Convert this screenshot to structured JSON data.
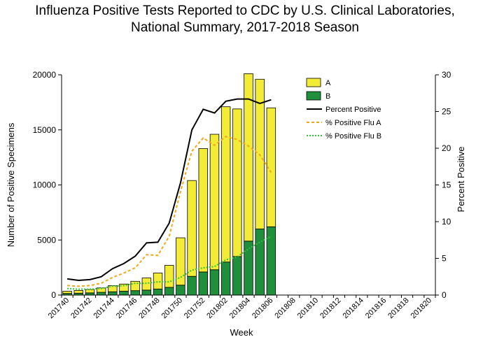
{
  "title": {
    "line1": "Influenza Positive Tests Reported to CDC by U.S. Clinical Laboratories,",
    "line2": "National Summary, 2017-2018 Season"
  },
  "colors": {
    "flu_a_fill": "#f3ec36",
    "flu_b_fill": "#1f8f3c",
    "percent_positive_line": "#000000",
    "percent_flu_a_line": "#f0a81c",
    "percent_flu_b_line": "#36c23a"
  },
  "chart_data": {
    "type": "bar",
    "stacked": true,
    "xlabel": "Week",
    "ylabel_left": "Number of Positive Specimens",
    "ylabel_right": "Percent Positive",
    "ylim_left": [
      0,
      20000
    ],
    "ylim_right": [
      0,
      30
    ],
    "left_ticks": [
      "0",
      "5000",
      "10000",
      "15000",
      "20000"
    ],
    "right_ticks": [
      "0",
      "5",
      "10",
      "15",
      "20",
      "25",
      "30"
    ],
    "grid": false,
    "legend_position": "top-right",
    "categories": [
      "201740",
      "201741",
      "201742",
      "201743",
      "201744",
      "201745",
      "201746",
      "201747",
      "201748",
      "201749",
      "201750",
      "201751",
      "201752",
      "201801",
      "201802",
      "201803",
      "201804",
      "201805",
      "201806",
      "201807",
      "201808",
      "201809",
      "201810",
      "201811",
      "201812",
      "201813",
      "201814",
      "201815",
      "201816",
      "201817",
      "201818",
      "201819",
      "201820"
    ],
    "tick_labels": [
      "201740",
      "201742",
      "201744",
      "201746",
      "201748",
      "201750",
      "201752",
      "201802",
      "201804",
      "201806",
      "201808",
      "201810",
      "201812",
      "201814",
      "201816",
      "201818",
      "201820"
    ],
    "bar_series": [
      {
        "name": "A",
        "values": [
          200,
          250,
          300,
          400,
          550,
          650,
          850,
          1100,
          1450,
          2000,
          4300,
          8700,
          11200,
          12300,
          14100,
          13400,
          15200,
          13600,
          10800,
          null,
          null,
          null,
          null,
          null,
          null,
          null,
          null,
          null,
          null,
          null,
          null,
          null,
          null
        ]
      },
      {
        "name": "B",
        "values": [
          150,
          170,
          200,
          250,
          300,
          350,
          400,
          450,
          550,
          700,
          900,
          1700,
          2100,
          2300,
          3000,
          3500,
          4900,
          6000,
          6200,
          null,
          null,
          null,
          null,
          null,
          null,
          null,
          null,
          null,
          null,
          null,
          null,
          null,
          null
        ]
      }
    ],
    "line_series": [
      {
        "name": "Percent Positive",
        "values": [
          2.2,
          2.0,
          2.1,
          2.5,
          3.6,
          4.3,
          5.3,
          7.1,
          7.2,
          9.8,
          15.3,
          22.5,
          25.3,
          24.8,
          26.4,
          26.7,
          26.7,
          26.1,
          26.6,
          null,
          null,
          null,
          null,
          null,
          null,
          null,
          null,
          null,
          null,
          null,
          null,
          null,
          null
        ]
      },
      {
        "name": "% Positive Flu A",
        "values": [
          1.3,
          1.2,
          1.3,
          1.6,
          2.4,
          3.0,
          3.7,
          5.5,
          5.4,
          8.0,
          14.1,
          19.6,
          21.4,
          20.4,
          21.6,
          21.2,
          20.3,
          19.1,
          16.7,
          null,
          null,
          null,
          null,
          null,
          null,
          null,
          null,
          null,
          null,
          null,
          null,
          null,
          null
        ]
      },
      {
        "name": "% Positive Flu B",
        "values": [
          0.9,
          0.8,
          0.8,
          0.9,
          1.2,
          1.3,
          1.6,
          1.6,
          1.8,
          1.8,
          2.4,
          3.4,
          3.7,
          3.9,
          4.8,
          5.2,
          6.3,
          7.2,
          8.0,
          null,
          null,
          null,
          null,
          null,
          null,
          null,
          null,
          null,
          null,
          null,
          null,
          null,
          null
        ]
      }
    ],
    "legend": [
      "A",
      "B",
      "Percent Positive",
      "% Positive Flu A",
      "% Positive Flu B"
    ]
  }
}
